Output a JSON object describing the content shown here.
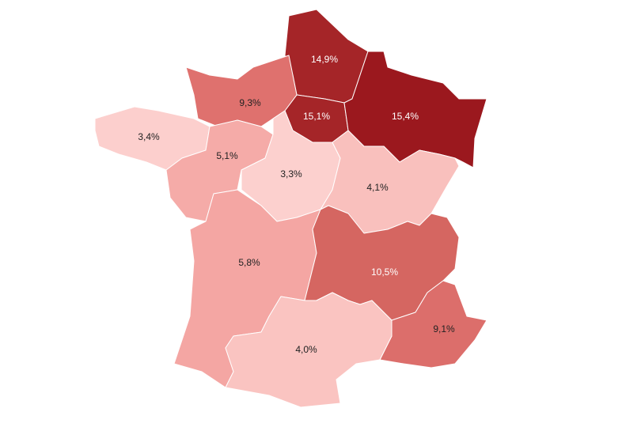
{
  "regions": [
    {
      "label": "14,9%",
      "color": "#a52528"
    },
    {
      "label": "15,1%",
      "color": "#a52528"
    },
    {
      "label": "15,4%",
      "color": "#9b181e"
    },
    {
      "label": "9,3%",
      "color": "#df716e"
    },
    {
      "label": "3,4%",
      "color": "#fccfcd"
    },
    {
      "label": "5,1%",
      "color": "#f5aba8"
    },
    {
      "label": "3,3%",
      "color": "#fcd0ce"
    },
    {
      "label": "4,1%",
      "color": "#f9c0bd"
    },
    {
      "label": "5,8%",
      "color": "#f4a6a3"
    },
    {
      "label": "10,5%",
      "color": "#d56661"
    },
    {
      "label": "9,1%",
      "color": "#dc6e6b"
    },
    {
      "label": "4,0%",
      "color": "#fac4c1"
    }
  ]
}
